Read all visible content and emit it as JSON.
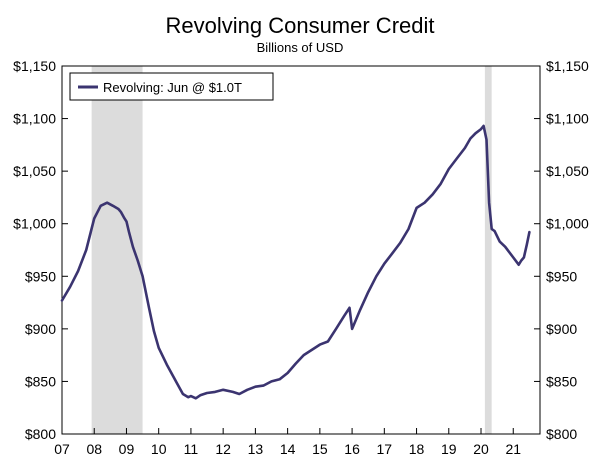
{
  "chart_data": {
    "type": "line",
    "title": "Revolving Consumer Credit",
    "subtitle": "Billions of USD",
    "xlabel": "",
    "ylabel": "",
    "xlim": [
      2007.0,
      2021.83
    ],
    "ylim": [
      800,
      1150
    ],
    "y_ticks": [
      800,
      850,
      900,
      950,
      1000,
      1050,
      1100,
      1150
    ],
    "y_tick_labels": [
      "$800",
      "$850",
      "$900",
      "$950",
      "$1,000",
      "$1,050",
      "$1,100",
      "$1,150"
    ],
    "x_ticks": [
      2007,
      2008,
      2009,
      2010,
      2011,
      2012,
      2013,
      2014,
      2015,
      2016,
      2017,
      2018,
      2019,
      2020,
      2021
    ],
    "x_tick_labels": [
      "07",
      "08",
      "09",
      "10",
      "11",
      "12",
      "13",
      "14",
      "15",
      "16",
      "17",
      "18",
      "19",
      "20",
      "21"
    ],
    "grid": false,
    "legend_position": "top-left",
    "line_color": "#3b3470",
    "recession_color": "#dcdcdc",
    "recessions": [
      {
        "start": 2007.92,
        "end": 2009.5
      },
      {
        "start": 2020.12,
        "end": 2020.33
      }
    ],
    "series": [
      {
        "name": "Revolving: Jun @ $1.0T",
        "x": [
          2007.0,
          2007.25,
          2007.5,
          2007.75,
          2008.0,
          2008.2,
          2008.4,
          2008.58,
          2008.75,
          2008.83,
          2008.92,
          2009.0,
          2009.08,
          2009.2,
          2009.35,
          2009.5,
          2009.7,
          2009.85,
          2010.0,
          2010.25,
          2010.5,
          2010.75,
          2010.92,
          2011.0,
          2011.15,
          2011.3,
          2011.5,
          2011.75,
          2012.0,
          2012.3,
          2012.5,
          2012.75,
          2013.0,
          2013.25,
          2013.5,
          2013.75,
          2014.0,
          2014.25,
          2014.5,
          2014.75,
          2015.0,
          2015.25,
          2015.5,
          2015.75,
          2015.92,
          2016.0,
          2016.25,
          2016.5,
          2016.75,
          2017.0,
          2017.25,
          2017.5,
          2017.75,
          2018.0,
          2018.25,
          2018.5,
          2018.75,
          2019.0,
          2019.25,
          2019.5,
          2019.67,
          2019.83,
          2020.0,
          2020.08,
          2020.17,
          2020.25,
          2020.33,
          2020.42,
          2020.58,
          2020.75,
          2021.0,
          2021.17,
          2021.25,
          2021.33,
          2021.42,
          2021.5
        ],
        "values": [
          927,
          940,
          955,
          975,
          1005,
          1017,
          1020,
          1017,
          1014,
          1011,
          1006,
          1002,
          992,
          978,
          965,
          950,
          920,
          898,
          882,
          866,
          852,
          838,
          835,
          836,
          834,
          837,
          839,
          840,
          842,
          840,
          838,
          842,
          845,
          846,
          850,
          852,
          858,
          867,
          875,
          880,
          885,
          888,
          900,
          912,
          920,
          900,
          918,
          935,
          950,
          962,
          972,
          982,
          995,
          1015,
          1020,
          1028,
          1038,
          1052,
          1062,
          1072,
          1081,
          1086,
          1090,
          1093,
          1080,
          1020,
          995,
          993,
          983,
          978,
          968,
          961,
          965,
          968,
          980,
          992
        ]
      }
    ]
  }
}
